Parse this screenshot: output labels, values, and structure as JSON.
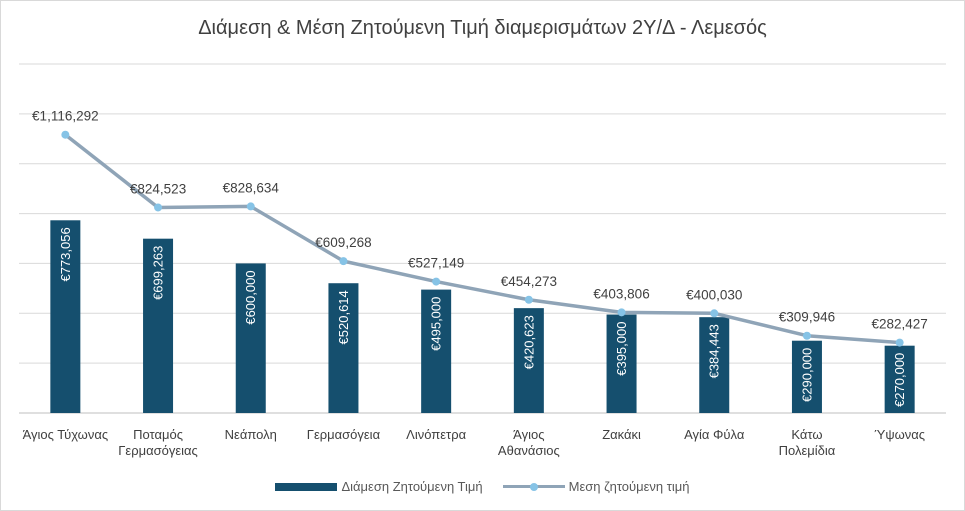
{
  "chart_data": {
    "type": "bar",
    "title": "Διάμεση & Μέση Ζητούμενη Τιμή διαμερισμάτων 2Υ/Δ - Λεμεσός",
    "categories": [
      "Άγιος Τύχωνας",
      "Ποταμός Γερμασόγειας",
      "Νεάπολη",
      "Γερμασόγεια",
      "Λινόπετρα",
      "Άγιος Αθανάσιος",
      "Ζακάκι",
      "Αγία Φύλα",
      "Κάτω Πολεμίδια",
      "Ύψωνας"
    ],
    "series": [
      {
        "name": "Διάμεση Ζητούμενη Τιμή",
        "type": "bar",
        "color": "#154f6e",
        "values": [
          773056,
          699263,
          600000,
          520614,
          495000,
          420623,
          395000,
          384443,
          290000,
          270000
        ],
        "labels": [
          "€773,056",
          "€699,263",
          "€600,000",
          "€520,614",
          "€495,000",
          "€420,623",
          "€395,000",
          "€384,443",
          "€290,000",
          "€270,000"
        ]
      },
      {
        "name": "Μεση ζητούμενη τιμή",
        "type": "line",
        "color": "#8fa4b7",
        "marker_color": "#86c3e6",
        "values": [
          1116292,
          824523,
          828634,
          609268,
          527149,
          454273,
          403806,
          400030,
          309946,
          282427
        ],
        "labels": [
          "€1,116,292",
          "€824,523",
          "€828,634",
          "€609,268",
          "€527,149",
          "€454,273",
          "€403,806",
          "€400,030",
          "€309,946",
          "€282,427"
        ]
      }
    ],
    "ylim": [
      0,
      1400000
    ],
    "ytick_step": 200000,
    "y_axis_labels_shown": false,
    "grid": true,
    "legend_position": "bottom",
    "colors": {
      "gridline": "#d9d9d9",
      "label_text": "#404040",
      "bar_label_text": "#ffffff"
    }
  }
}
